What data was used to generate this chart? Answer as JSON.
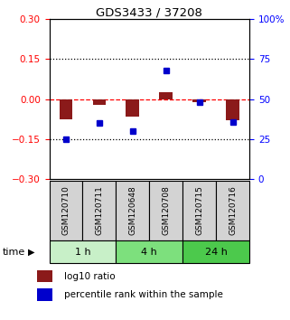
{
  "title": "GDS3433 / 37208",
  "samples": [
    "GSM120710",
    "GSM120711",
    "GSM120648",
    "GSM120708",
    "GSM120715",
    "GSM120716"
  ],
  "log10_ratio": [
    -0.075,
    -0.02,
    -0.065,
    0.025,
    -0.01,
    -0.08
  ],
  "percentile_rank": [
    25,
    35,
    30,
    68,
    48,
    36
  ],
  "time_groups": [
    {
      "label": "1 h",
      "start": 0,
      "end": 2,
      "color": "#c8f0c8"
    },
    {
      "label": "4 h",
      "start": 2,
      "end": 4,
      "color": "#7de07d"
    },
    {
      "label": "24 h",
      "start": 4,
      "end": 6,
      "color": "#4cc94c"
    }
  ],
  "bar_color": "#8B1A1A",
  "dot_color": "#0000CC",
  "left_ylim": [
    -0.3,
    0.3
  ],
  "right_ylim": [
    0,
    100
  ],
  "left_yticks": [
    -0.3,
    -0.15,
    0,
    0.15,
    0.3
  ],
  "right_yticks": [
    0,
    25,
    50,
    75,
    100
  ],
  "dotted_lines": [
    -0.15,
    0.15
  ],
  "bg_color": "#ffffff",
  "sample_box_color": "#d3d3d3",
  "legend_bar_label": "log10 ratio",
  "legend_dot_label": "percentile rank within the sample"
}
